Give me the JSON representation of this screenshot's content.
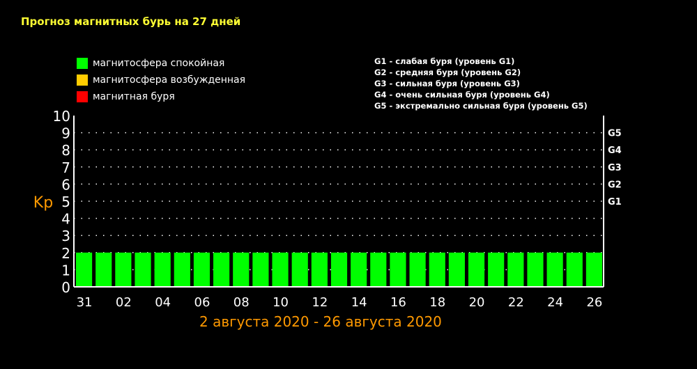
{
  "title": "Прогноз магнитных бурь на 27 дней",
  "legend": [
    {
      "label": "магнитосфера спокойная",
      "color": "#00ff00"
    },
    {
      "label": "магнитосфера возбужденная",
      "color": "#ffcc00"
    },
    {
      "label": "магнитная буря",
      "color": "#ff0000"
    }
  ],
  "g_legend": [
    "G1 - слабая буря (уровень G1)",
    "G2 - средняя буря (уровень G2)",
    "G3 - сильная буря (уровень G3)",
    "G4 - очень сильная буря (уровень G4)",
    "G5 - экстремально сильная буря (уровень G5)"
  ],
  "date_range": "2 августа 2020 - 26 августа 2020",
  "chart_data": {
    "type": "bar",
    "ylabel": "Kp",
    "ylim": [
      0,
      10
    ],
    "y_ticks": [
      "0",
      "1",
      "2",
      "3",
      "4",
      "5",
      "6",
      "7",
      "8",
      "9",
      "10"
    ],
    "x_tick_labels": [
      "31",
      "02",
      "04",
      "06",
      "08",
      "10",
      "12",
      "14",
      "16",
      "18",
      "20",
      "22",
      "24",
      "26"
    ],
    "values": [
      2,
      2,
      2,
      2,
      2,
      2,
      2,
      2,
      2,
      2,
      2,
      2,
      2,
      2,
      2,
      2,
      2,
      2,
      2,
      2,
      2,
      2,
      2,
      2,
      2,
      2,
      2
    ],
    "bar_color": "#00ff00",
    "g_levels": [
      {
        "label": "G1",
        "kp": 5
      },
      {
        "label": "G2",
        "kp": 6
      },
      {
        "label": "G3",
        "kp": 7
      },
      {
        "label": "G4",
        "kp": 8
      },
      {
        "label": "G5",
        "kp": 9
      }
    ],
    "grid": true
  }
}
